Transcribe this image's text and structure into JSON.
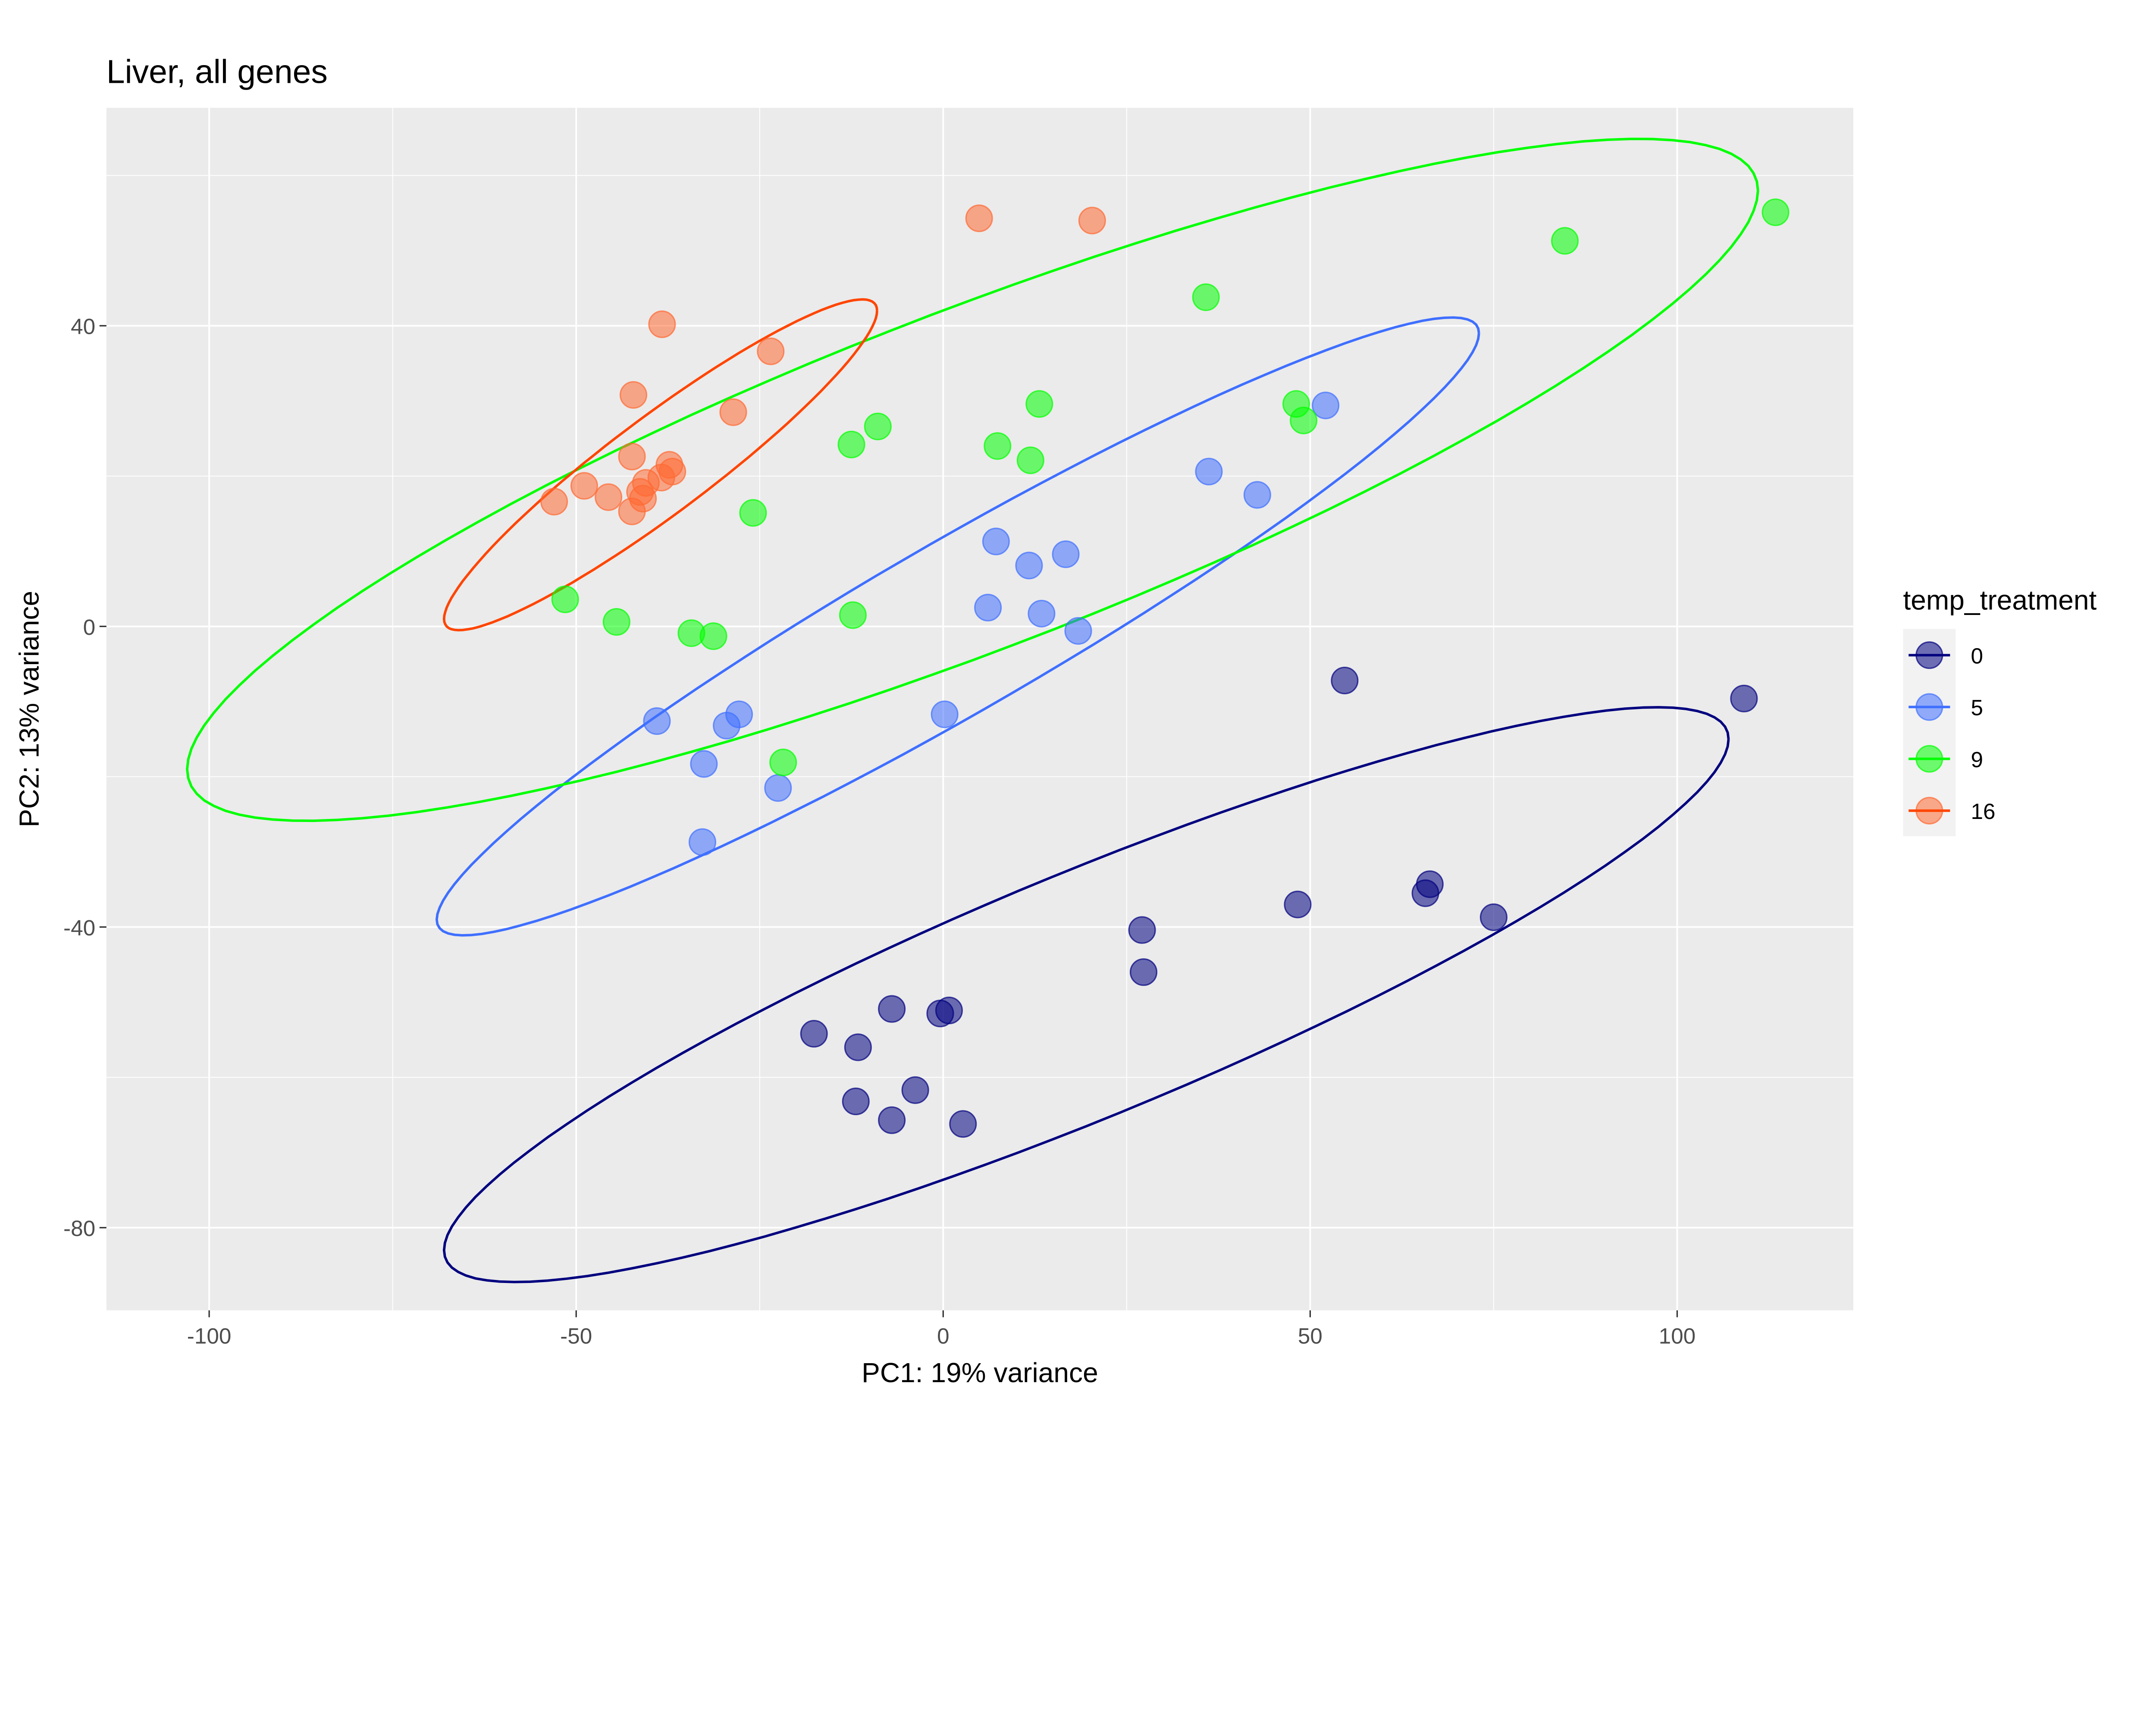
{
  "chart_data": {
    "type": "scatter",
    "title": "Liver, all genes",
    "xlabel": "PC1: 19% variance",
    "ylabel": "PC2: 13% variance",
    "xlim": [
      -114,
      124
    ],
    "ylim": [
      -91,
      69
    ],
    "xticks": [
      -100,
      -50,
      0,
      50,
      100
    ],
    "yticks": [
      -80,
      -40,
      0,
      40
    ],
    "grid": true,
    "legend": {
      "title": "temp_treatment",
      "placement": "right"
    },
    "series": [
      {
        "name": "0",
        "color": "#00007f",
        "ellipse": {
          "center": [
            19.5,
            -49
          ],
          "a": [
            87.5,
            34
          ],
          "b": [
            0,
            17.5
          ]
        },
        "points": [
          [
            54.7,
            -7.2
          ],
          [
            109.1,
            -9.6
          ],
          [
            66.3,
            -34.3
          ],
          [
            65.7,
            -35.5
          ],
          [
            48.3,
            -37.0
          ],
          [
            75,
            -38.7
          ],
          [
            27.1,
            -40.4
          ],
          [
            27.3,
            -46.0
          ],
          [
            -7.0,
            -50.9
          ],
          [
            0.8,
            -51.1
          ],
          [
            -0.4,
            -51.5
          ],
          [
            -17.6,
            -54.2
          ],
          [
            -11.6,
            -56.0
          ],
          [
            -3.8,
            -61.7
          ],
          [
            -11.9,
            -63.2
          ],
          [
            -7.0,
            -65.7
          ],
          [
            2.7,
            -66.2
          ]
        ]
      },
      {
        "name": "5",
        "color": "#3f6fff",
        "ellipse": {
          "center": [
            2,
            0
          ],
          "a": [
            71,
            39
          ],
          "b": [
            0,
            13
          ]
        },
        "points": [
          [
            52.1,
            29.4
          ],
          [
            36.2,
            20.6
          ],
          [
            42.8,
            17.5
          ],
          [
            7.2,
            11.3
          ],
          [
            16.7,
            9.6
          ],
          [
            11.7,
            8.1
          ],
          [
            6.1,
            2.5
          ],
          [
            13.4,
            1.7
          ],
          [
            18.4,
            -0.6
          ],
          [
            -39.0,
            -12.6
          ],
          [
            -27.8,
            -11.7
          ],
          [
            -29.5,
            -13.2
          ],
          [
            0.2,
            -11.7
          ],
          [
            -32.6,
            -18.3
          ],
          [
            -22.5,
            -21.5
          ],
          [
            -32.8,
            -28.7
          ]
        ]
      },
      {
        "name": "9",
        "color": "#00ff00",
        "ellipse": {
          "center": [
            4,
            19.5
          ],
          "a": [
            107,
            38.5
          ],
          "b": [
            0,
            24
          ]
        },
        "points": [
          [
            113.4,
            55.1
          ],
          [
            84.7,
            51.3
          ],
          [
            35.8,
            43.8
          ],
          [
            13.1,
            29.6
          ],
          [
            48.1,
            29.6
          ],
          [
            49.1,
            27.4
          ],
          [
            -8.9,
            26.6
          ],
          [
            -12.5,
            24.2
          ],
          [
            7.4,
            24.0
          ],
          [
            11.9,
            22.1
          ],
          [
            -25.9,
            15.1
          ],
          [
            -51.5,
            3.6
          ],
          [
            -12.3,
            1.5
          ],
          [
            -44.5,
            0.6
          ],
          [
            -34.3,
            -0.9
          ],
          [
            -31.3,
            -1.3
          ],
          [
            -21.8,
            -18.1
          ]
        ]
      },
      {
        "name": "16",
        "color": "#ff4500",
        "pointColor": "#ff6a33",
        "ellipse": {
          "center": [
            -38.5,
            21.5
          ],
          "a": [
            29.5,
            20.5
          ],
          "b": [
            0,
            8
          ]
        },
        "points": [
          [
            4.9,
            54.3
          ],
          [
            20.3,
            54.0
          ],
          [
            -38.3,
            40.2
          ],
          [
            -23.5,
            36.6
          ],
          [
            -42.2,
            30.8
          ],
          [
            -28.6,
            28.5
          ],
          [
            -42.4,
            22.6
          ],
          [
            -37.3,
            21.5
          ],
          [
            -36.9,
            20.6
          ],
          [
            -38.4,
            19.8
          ],
          [
            -40.5,
            19.1
          ],
          [
            -48.9,
            18.7
          ],
          [
            -41.3,
            17.9
          ],
          [
            -45.6,
            17.2
          ],
          [
            -53.0,
            16.6
          ],
          [
            -40.9,
            17.0
          ],
          [
            -42.4,
            15.3
          ]
        ]
      }
    ]
  }
}
